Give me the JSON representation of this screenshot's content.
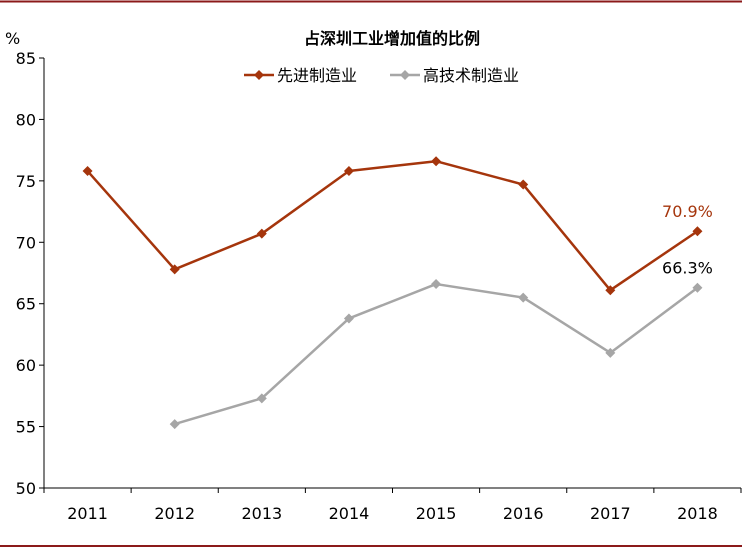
{
  "chart_data": {
    "type": "line",
    "title": "占深圳工业增加值的比例",
    "ylabel": "%",
    "xlabel": "",
    "categories": [
      "2011",
      "2012",
      "2013",
      "2014",
      "2015",
      "2016",
      "2017",
      "2018"
    ],
    "ylim": [
      50,
      85
    ],
    "yticks": [
      50,
      55,
      60,
      65,
      70,
      75,
      80,
      85
    ],
    "grid": false,
    "legend_position": "top-center",
    "series": [
      {
        "name": "先进制造业",
        "color": "#A5350C",
        "values": [
          75.8,
          67.8,
          70.7,
          75.8,
          76.6,
          74.7,
          66.1,
          70.9
        ]
      },
      {
        "name": "高技术制造业",
        "color": "#A6A6A6",
        "values": [
          null,
          55.2,
          57.3,
          63.8,
          66.6,
          65.5,
          61.0,
          66.3
        ]
      }
    ],
    "annotations": [
      {
        "series": 0,
        "index": 7,
        "text": "70.9%",
        "color": "#A5350C"
      },
      {
        "series": 1,
        "index": 7,
        "text": "66.3%",
        "color": "#000000"
      }
    ],
    "frame_color": "#8B1A1A"
  }
}
